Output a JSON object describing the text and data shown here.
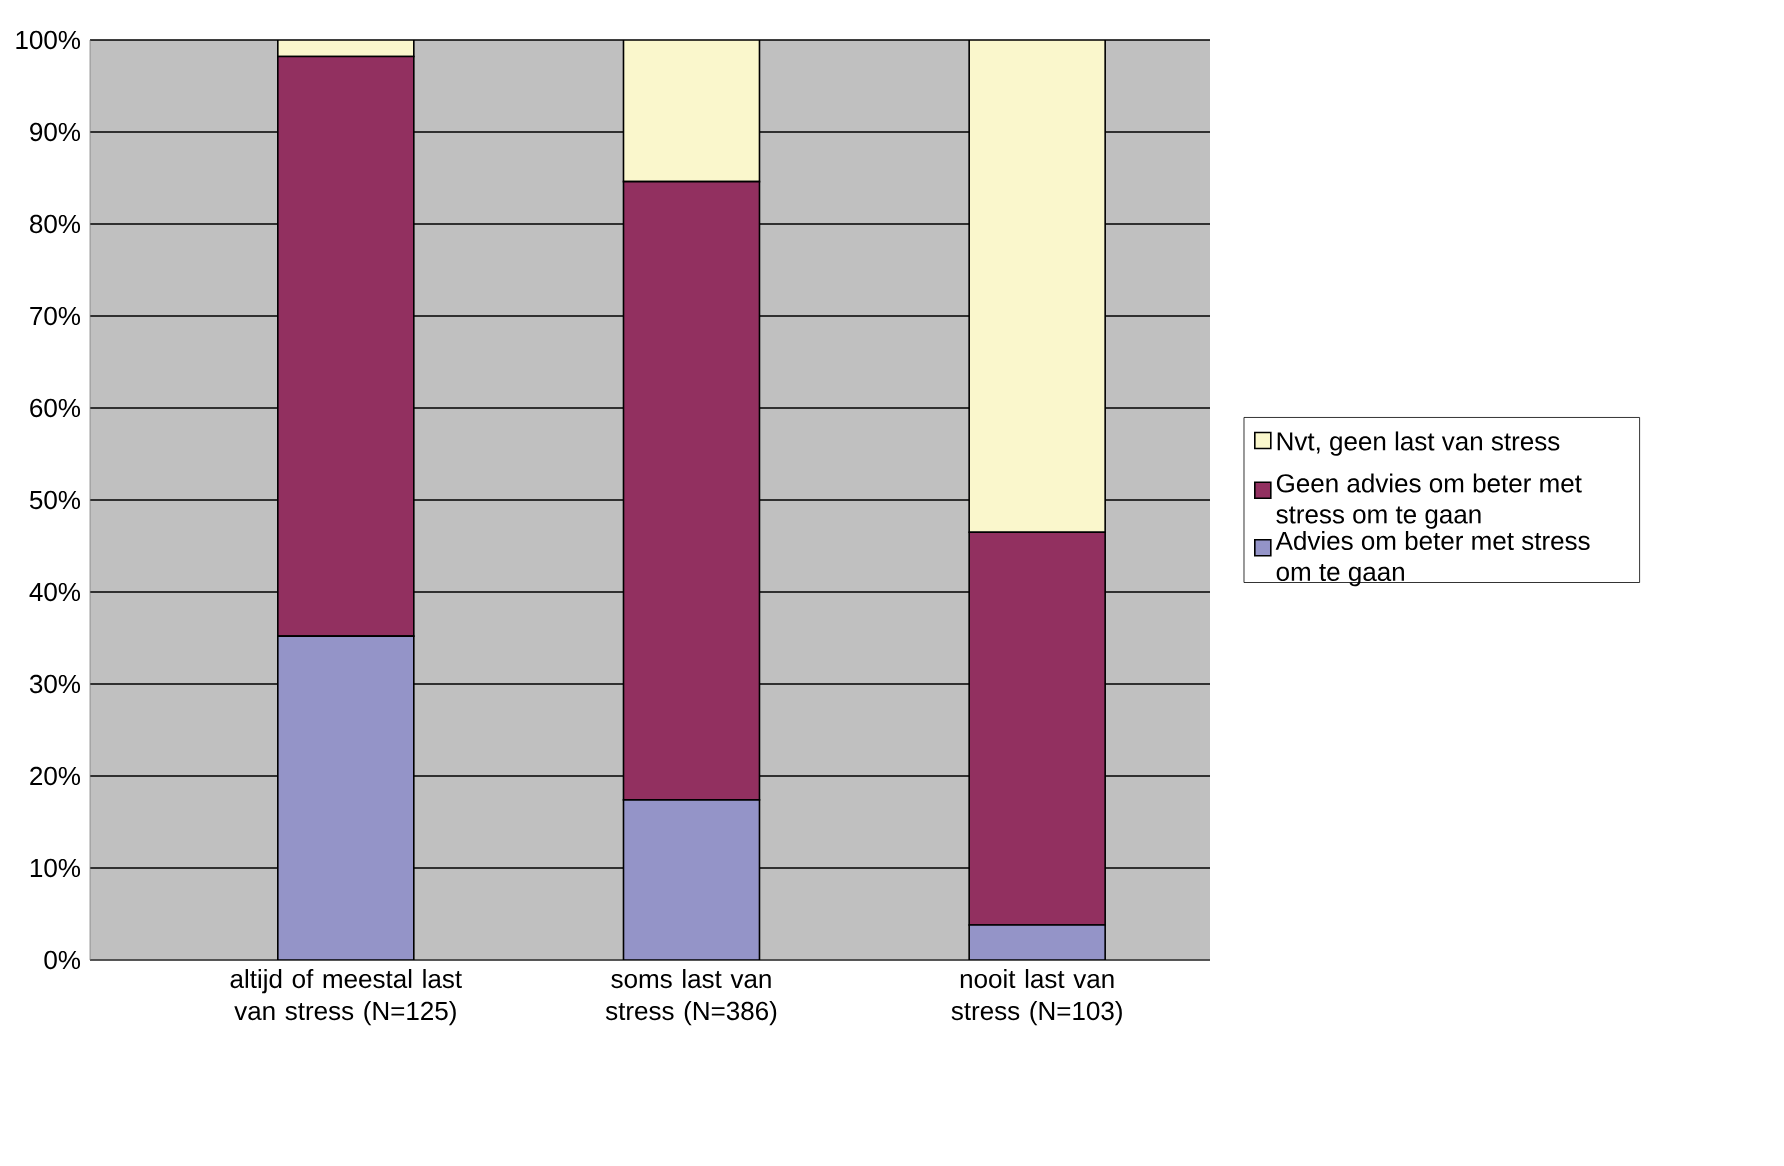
{
  "chart_data": {
    "type": "bar",
    "stacked": true,
    "categories": [
      "altijd of meestal last van stress (N=125)",
      "soms last van stress (N=386)",
      "nooit last van stress (N=103)"
    ],
    "series": [
      {
        "name": "Advies om beter met stress om te gaan",
        "color": "#9494c8",
        "values": [
          35.2,
          17.4,
          3.8
        ]
      },
      {
        "name": "Geen advies om beter met stress om te gaan",
        "color": "#923060",
        "values": [
          63.0,
          67.2,
          42.7
        ]
      },
      {
        "name": "Nvt, geen last van stress",
        "color": "#faf7cc",
        "values": [
          1.8,
          15.4,
          53.5
        ]
      }
    ],
    "ylim": [
      0,
      100
    ],
    "yticks": [
      {
        "value": 0,
        "label": "0%"
      },
      {
        "value": 10,
        "label": "10%"
      },
      {
        "value": 20,
        "label": "20%"
      },
      {
        "value": 30,
        "label": "30%"
      },
      {
        "value": 40,
        "label": "40%"
      },
      {
        "value": 50,
        "label": "50%"
      },
      {
        "value": 60,
        "label": "60%"
      },
      {
        "value": 70,
        "label": "70%"
      },
      {
        "value": 80,
        "label": "80%"
      },
      {
        "value": 90,
        "label": "90%"
      },
      {
        "value": 100,
        "label": "100%"
      }
    ],
    "grid": "y",
    "legend": "right"
  }
}
